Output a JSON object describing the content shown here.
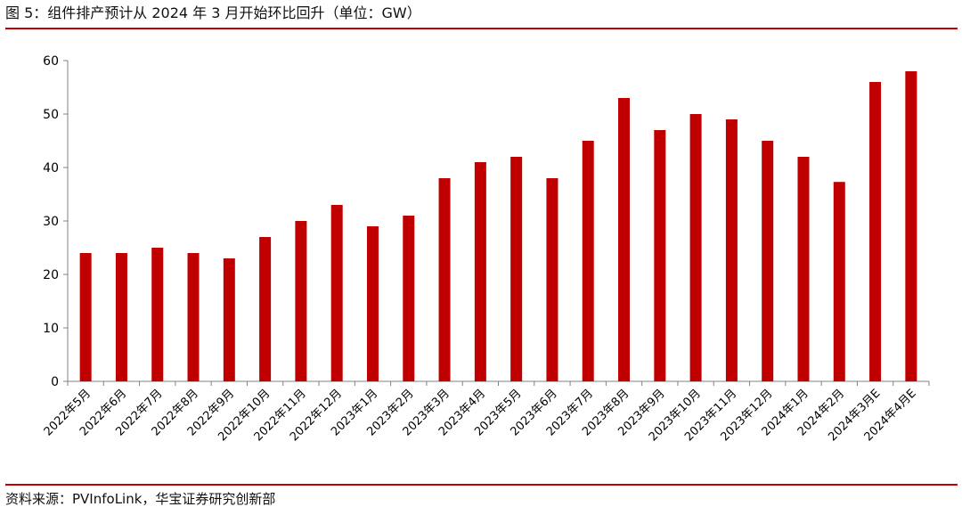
{
  "header": {
    "title": "图 5：组件排产预计从 2024 年 3 月开始环比回升（单位：GW）"
  },
  "footer": {
    "source": "资料来源：PVInfoLink，华宝证券研究创新部"
  },
  "colors": {
    "bar": "#c00000",
    "rule": "#c00000",
    "axis": "#808080"
  },
  "chart_data": {
    "type": "bar",
    "title": "",
    "xlabel": "",
    "ylabel": "",
    "ylim": [
      0,
      60
    ],
    "yticks": [
      0,
      10,
      20,
      30,
      40,
      50,
      60
    ],
    "grid": false,
    "legend": "none",
    "categories": [
      "2022年5月",
      "2022年6月",
      "2022年7月",
      "2022年8月",
      "2022年9月",
      "2022年10月",
      "2022年11月",
      "2022年12月",
      "2023年1月",
      "2023年2月",
      "2023年3月",
      "2023年4月",
      "2023年5月",
      "2023年6月",
      "2023年7月",
      "2023年8月",
      "2023年9月",
      "2023年10月",
      "2023年11月",
      "2023年12月",
      "2024年1月",
      "2024年2月",
      "2024年3月E",
      "2024年4月E"
    ],
    "values": [
      24,
      24,
      25,
      24,
      23,
      27,
      30,
      33,
      29,
      31,
      38,
      41,
      42,
      38,
      45,
      53,
      47,
      50,
      49,
      45,
      42,
      37.3,
      56,
      58
    ]
  }
}
